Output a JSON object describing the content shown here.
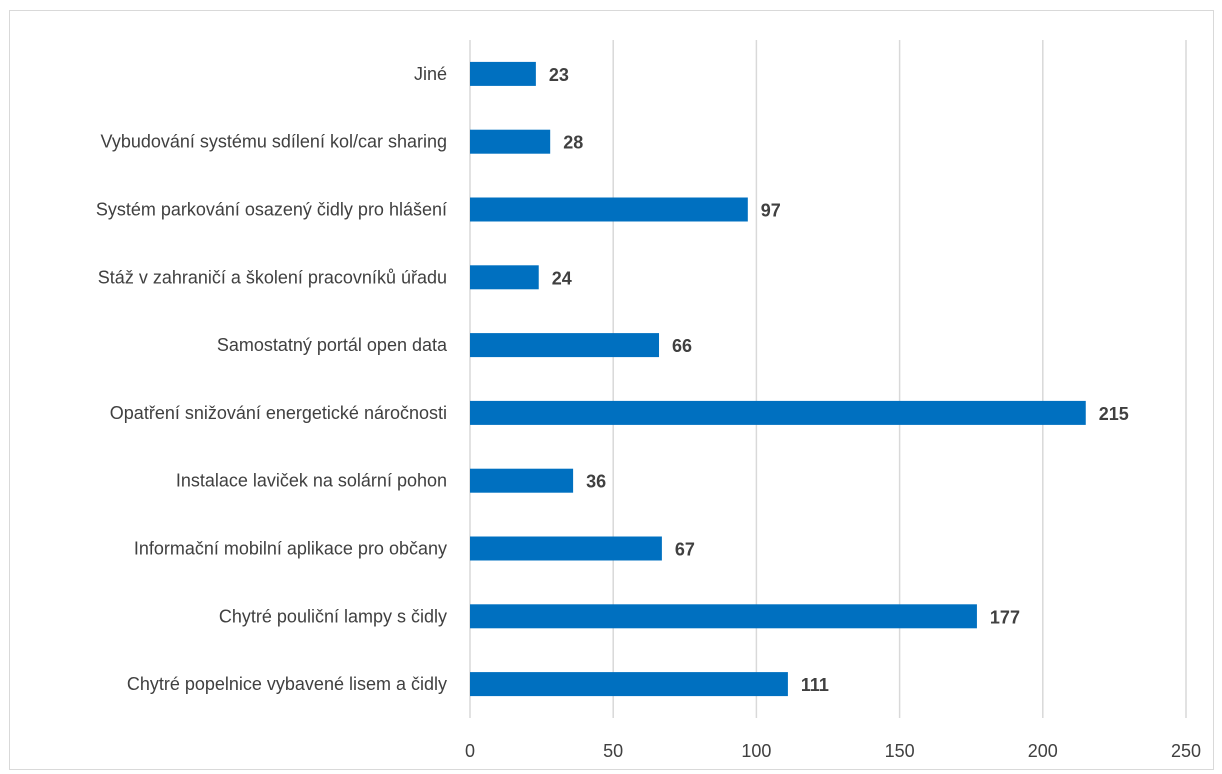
{
  "chart_data": {
    "type": "bar",
    "orientation": "horizontal",
    "categories": [
      "Jiné",
      "Vybudování systému sdílení kol/car sharing",
      "Systém parkování osazený čidly pro hlášení",
      "Stáž v zahraničí a školení pracovníků úřadu",
      "Samostatný portál open data",
      "Opatření snižování energetické náročnosti",
      "Instalace laviček na solární pohon",
      "Informační mobilní aplikace pro občany",
      "Chytré pouliční lampy s čidly",
      "Chytré popelnice vybavené lisem a čidly"
    ],
    "values": [
      23,
      28,
      97,
      24,
      66,
      215,
      36,
      67,
      177,
      111
    ],
    "data_labels": [
      "23",
      "28",
      "97",
      "24",
      "66",
      "215",
      "36",
      "67",
      "177",
      "111"
    ],
    "xlim": [
      0,
      250
    ],
    "x_ticks": [
      "0",
      "50",
      "100",
      "150",
      "200",
      "250"
    ],
    "title": "",
    "xlabel": "",
    "ylabel": "",
    "grid": "vertical",
    "bar_color": "#0070c0"
  }
}
